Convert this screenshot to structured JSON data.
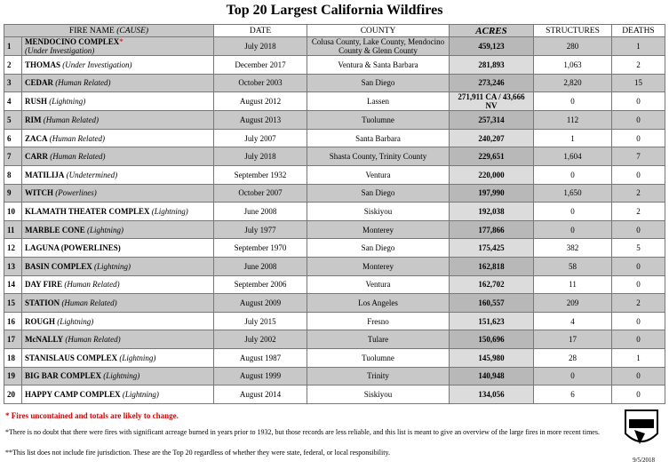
{
  "title": "Top 20 Largest California Wildfires",
  "table": {
    "headers": [
      "FIRE NAME",
      "(CAUSE)",
      "DATE",
      "COUNTY",
      "ACRES",
      "STRUCTURES",
      "DEATHS"
    ],
    "rows": [
      {
        "rank": "1",
        "name": "MENDOCINO COMPLEX",
        "marker": "*",
        "cause": "(Under Investigation)",
        "date": "July 2018",
        "county": "Colusa County, Lake County, Mendocino County & Glenn County",
        "acres": "459,123",
        "structures": "280",
        "deaths": "1"
      },
      {
        "rank": "2",
        "name": "THOMAS",
        "cause": "(Under Investigation)",
        "date": "December 2017",
        "county": "Ventura & Santa Barbara",
        "acres": "281,893",
        "structures": "1,063",
        "deaths": "2"
      },
      {
        "rank": "3",
        "name": "CEDAR",
        "cause": "(Human Related)",
        "date": "October 2003",
        "county": "San Diego",
        "acres": "273,246",
        "structures": "2,820",
        "deaths": "15"
      },
      {
        "rank": "4",
        "name": "RUSH",
        "cause": "(Lightning)",
        "date": "August 2012",
        "county": "Lassen",
        "acres": "271,911 CA / 43,666 NV",
        "structures": "0",
        "deaths": "0"
      },
      {
        "rank": "5",
        "name": "RIM",
        "cause": "(Human Related)",
        "date": "August 2013",
        "county": "Tuolumne",
        "acres": "257,314",
        "structures": "112",
        "deaths": "0"
      },
      {
        "rank": "6",
        "name": "ZACA",
        "cause": "(Human Related)",
        "date": "July 2007",
        "county": "Santa Barbara",
        "acres": "240,207",
        "structures": "1",
        "deaths": "0"
      },
      {
        "rank": "7",
        "name": "CARR",
        "cause": "(Human Related)",
        "date": "July 2018",
        "county": "Shasta County, Trinity County",
        "acres": "229,651",
        "structures": "1,604",
        "deaths": "7"
      },
      {
        "rank": "8",
        "name": "MATILIJA",
        "cause": "(Undetermined)",
        "date": "September 1932",
        "county": "Ventura",
        "acres": "220,000",
        "structures": "0",
        "deaths": "0"
      },
      {
        "rank": "9",
        "name": "WITCH",
        "cause": "(Powerlines)",
        "date": "October 2007",
        "county": "San Diego",
        "acres": "197,990",
        "structures": "1,650",
        "deaths": "2"
      },
      {
        "rank": "10",
        "name": "KLAMATH THEATER COMPLEX",
        "cause": "(Lightning)",
        "date": "June 2008",
        "county": "Siskiyou",
        "acres": "192,038",
        "structures": "0",
        "deaths": "2"
      },
      {
        "rank": "11",
        "name": "MARBLE CONE",
        "cause": "(Lightning)",
        "date": "July 1977",
        "county": "Monterey",
        "acres": "177,866",
        "structures": "0",
        "deaths": "0"
      },
      {
        "rank": "12",
        "name": "LAGUNA (POWERLINES)",
        "date": "September 1970",
        "county": "San Diego",
        "acres": "175,425",
        "structures": "382",
        "deaths": "5"
      },
      {
        "rank": "13",
        "name": "BASIN COMPLEX",
        "cause": "(Lightning)",
        "date": "June 2008",
        "county": "Monterey",
        "acres": "162,818",
        "structures": "58",
        "deaths": "0"
      },
      {
        "rank": "14",
        "name": "DAY FIRE",
        "cause": "(Human Related)",
        "date": "September 2006",
        "county": "Ventura",
        "acres": "162,702",
        "structures": "11",
        "deaths": "0"
      },
      {
        "rank": "15",
        "name": "STATION",
        "cause": "(Human Related)",
        "date": "August 2009",
        "county": "Los Angeles",
        "acres": "160,557",
        "structures": "209",
        "deaths": "2"
      },
      {
        "rank": "16",
        "name": "ROUGH",
        "cause": "(Lightning)",
        "date": "July 2015",
        "county": "Fresno",
        "acres": "151,623",
        "structures": "4",
        "deaths": "0"
      },
      {
        "rank": "17",
        "name": "McNALLY",
        "cause": "(Human Related)",
        "date": "July 2002",
        "county": "Tulare",
        "acres": "150,696",
        "structures": "17",
        "deaths": "0"
      },
      {
        "rank": "18",
        "name": "STANISLAUS COMPLEX",
        "cause": "(Lightning)",
        "date": "August 1987",
        "county": "Tuolumne",
        "acres": "145,980",
        "structures": "28",
        "deaths": "1"
      },
      {
        "rank": "19",
        "name": "BIG BAR COMPLEX",
        "cause": "(Lightning)",
        "date": "August 1999",
        "county": "Trinity",
        "acres": "140,948",
        "structures": "0",
        "deaths": "0"
      },
      {
        "rank": "20",
        "name": "HAPPY CAMP COMPLEX",
        "cause": "(Lightning)",
        "date": "August 2014",
        "county": "Siskiyou",
        "acres": "134,056",
        "structures": "6",
        "deaths": "0"
      }
    ]
  },
  "notes": {
    "uncontained": "* Fires uncontained and totals are likely to change.",
    "pre1932": "*There is no doubt that there were fires with significant acreage burned in years prior to 1932, but those records are less reliable, and this list is meant to give an overview of the large fires in more recent times.",
    "jurisdiction": "**This list does not include fire jurisdiction.  These are the Top 20 regardless of whether they were state, federal, or local responsibility.",
    "date": "9/5/2018"
  }
}
